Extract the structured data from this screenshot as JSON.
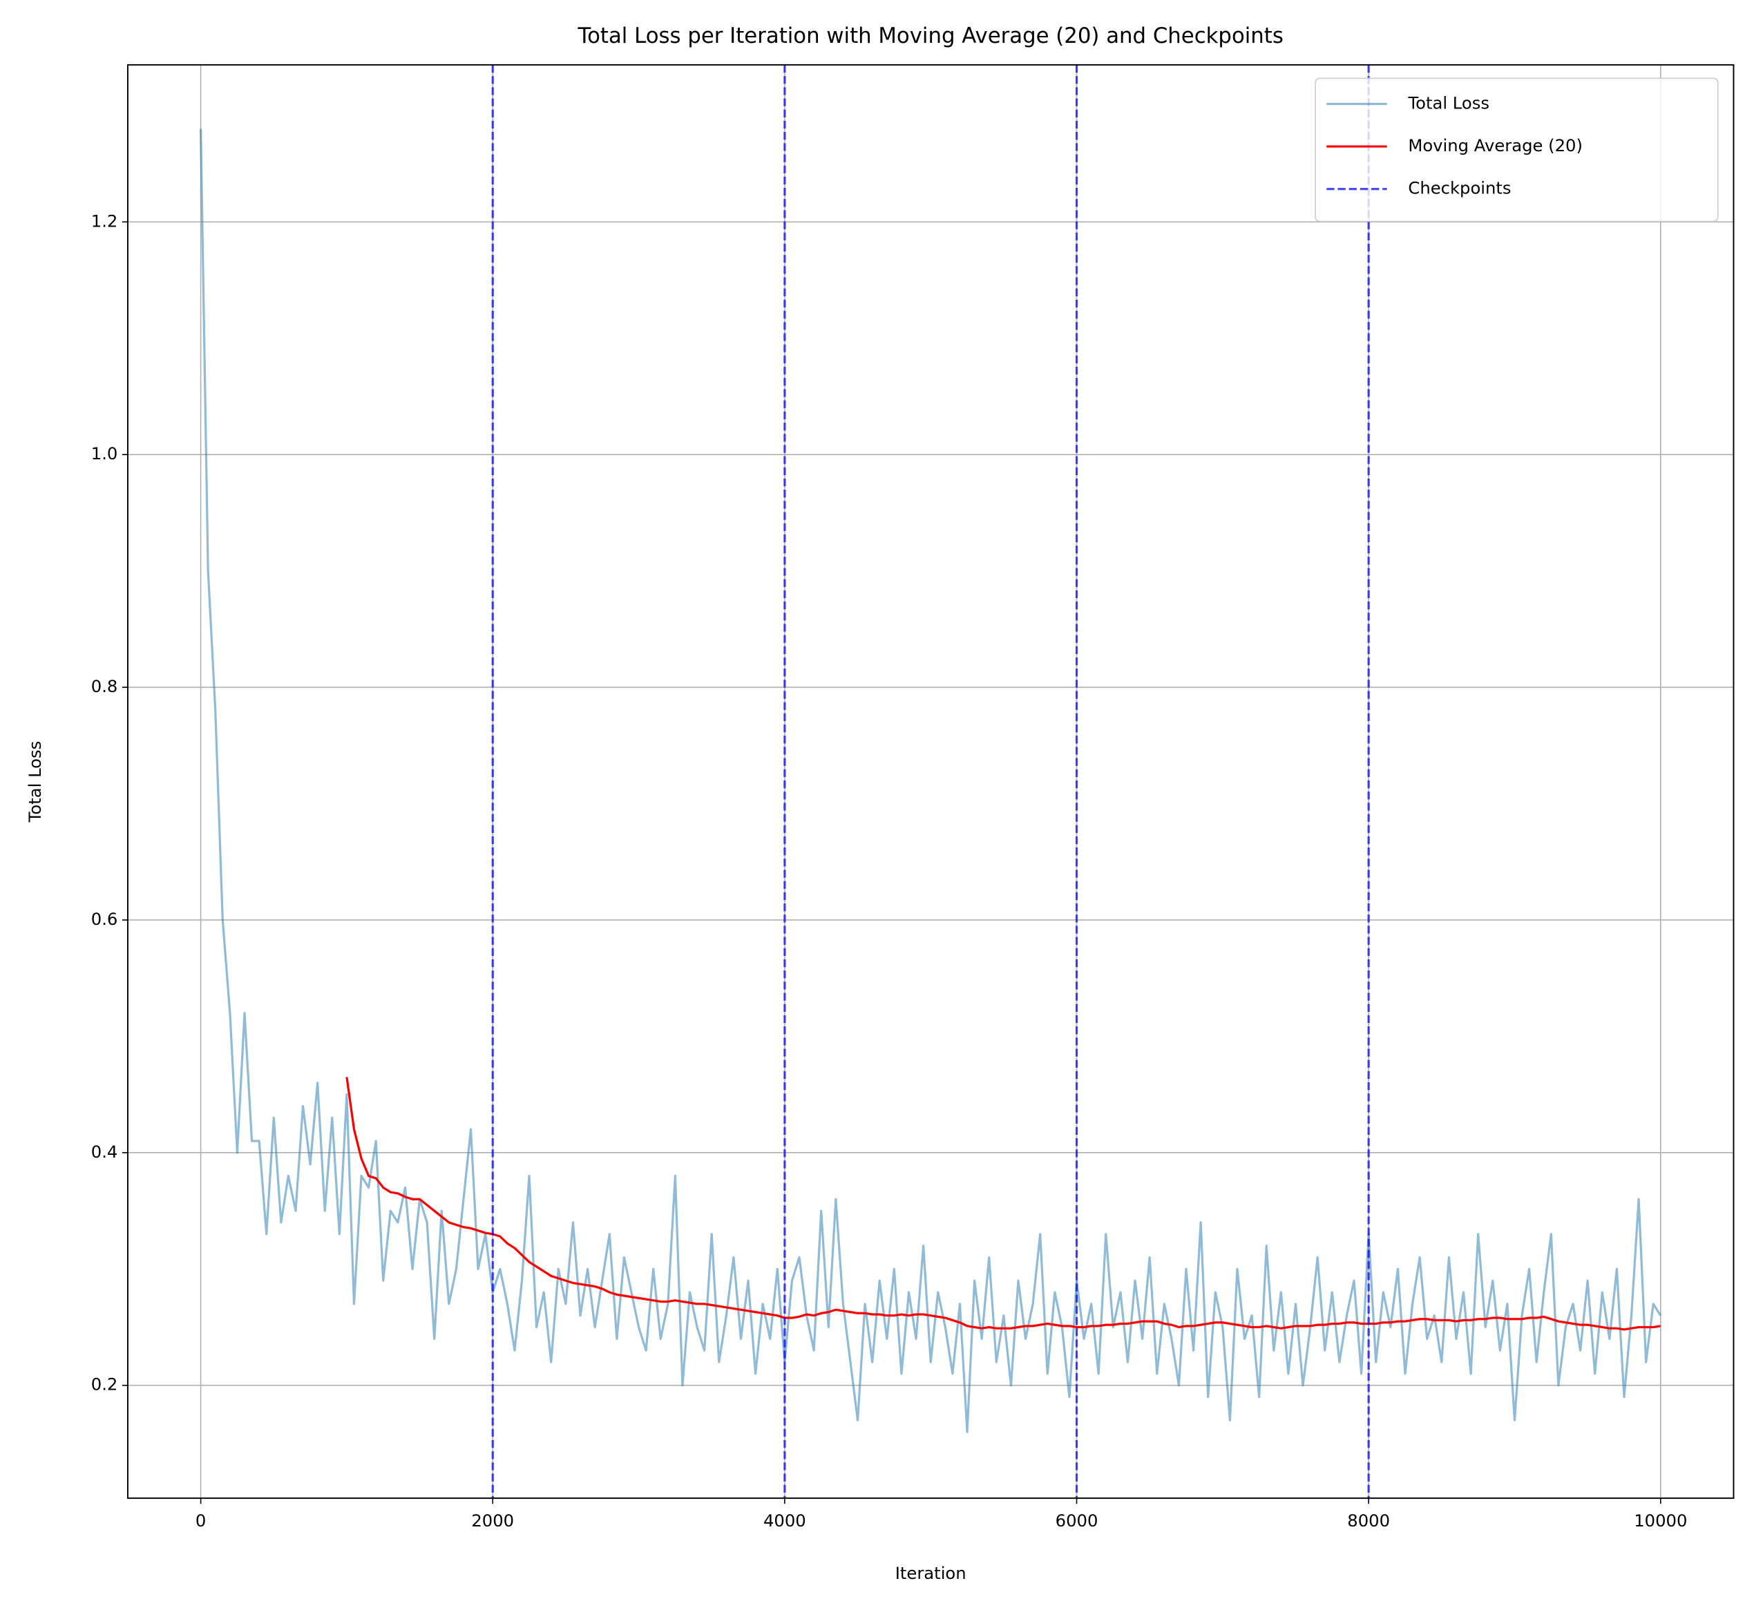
{
  "chart_data": {
    "type": "line",
    "title": "Total Loss per Iteration with Moving Average (20) and Checkpoints",
    "xlabel": "Iteration",
    "ylabel": "Total Loss",
    "x": [
      0,
      50,
      100,
      150,
      200,
      250,
      300,
      350,
      400,
      450,
      500,
      550,
      600,
      650,
      700,
      750,
      800,
      850,
      900,
      950,
      1000,
      1050,
      1100,
      1150,
      1200,
      1250,
      1300,
      1350,
      1400,
      1450,
      1500,
      1550,
      1600,
      1650,
      1700,
      1750,
      1800,
      1850,
      1900,
      1950,
      2000,
      2050,
      2100,
      2150,
      2200,
      2250,
      2300,
      2350,
      2400,
      2450,
      2500,
      2550,
      2600,
      2650,
      2700,
      2750,
      2800,
      2850,
      2900,
      2950,
      3000,
      3050,
      3100,
      3150,
      3200,
      3250,
      3300,
      3350,
      3400,
      3450,
      3500,
      3550,
      3600,
      3650,
      3700,
      3750,
      3800,
      3850,
      3900,
      3950,
      4000,
      4050,
      4100,
      4150,
      4200,
      4250,
      4300,
      4350,
      4400,
      4450,
      4500,
      4550,
      4600,
      4650,
      4700,
      4750,
      4800,
      4850,
      4900,
      4950,
      5000,
      5050,
      5100,
      5150,
      5200,
      5250,
      5300,
      5350,
      5400,
      5450,
      5500,
      5550,
      5600,
      5650,
      5700,
      5750,
      5800,
      5850,
      5900,
      5950,
      6000,
      6050,
      6100,
      6150,
      6200,
      6250,
      6300,
      6350,
      6400,
      6450,
      6500,
      6550,
      6600,
      6650,
      6700,
      6750,
      6800,
      6850,
      6900,
      6950,
      7000,
      7050,
      7100,
      7150,
      7200,
      7250,
      7300,
      7350,
      7400,
      7450,
      7500,
      7550,
      7600,
      7650,
      7700,
      7750,
      7800,
      7850,
      7900,
      7950,
      8000,
      8050,
      8100,
      8150,
      8200,
      8250,
      8300,
      8350,
      8400,
      8450,
      8500,
      8550,
      8600,
      8650,
      8700,
      8750,
      8800,
      8850,
      8900,
      8950,
      9000,
      9050,
      9100,
      9150,
      9200,
      9250,
      9300,
      9350,
      9400,
      9450,
      9500,
      9550,
      9600,
      9650,
      9700,
      9750,
      9800,
      9850,
      9900,
      9950,
      10000
    ],
    "series": [
      {
        "name": "Total Loss",
        "color": "#1f77b4",
        "opacity": 0.5,
        "values": [
          1.28,
          0.9,
          0.78,
          0.6,
          0.52,
          0.4,
          0.52,
          0.41,
          0.41,
          0.33,
          0.43,
          0.34,
          0.38,
          0.35,
          0.44,
          0.39,
          0.46,
          0.35,
          0.43,
          0.33,
          0.45,
          0.27,
          0.38,
          0.37,
          0.41,
          0.29,
          0.35,
          0.34,
          0.37,
          0.3,
          0.36,
          0.34,
          0.24,
          0.35,
          0.27,
          0.3,
          0.36,
          0.42,
          0.3,
          0.33,
          0.28,
          0.3,
          0.27,
          0.23,
          0.29,
          0.38,
          0.25,
          0.28,
          0.22,
          0.3,
          0.27,
          0.34,
          0.26,
          0.3,
          0.25,
          0.29,
          0.33,
          0.24,
          0.31,
          0.28,
          0.25,
          0.23,
          0.3,
          0.24,
          0.27,
          0.38,
          0.2,
          0.28,
          0.25,
          0.23,
          0.33,
          0.22,
          0.26,
          0.31,
          0.24,
          0.29,
          0.21,
          0.27,
          0.24,
          0.3,
          0.22,
          0.29,
          0.31,
          0.26,
          0.23,
          0.35,
          0.25,
          0.36,
          0.27,
          0.22,
          0.17,
          0.27,
          0.22,
          0.29,
          0.24,
          0.3,
          0.21,
          0.28,
          0.24,
          0.32,
          0.22,
          0.28,
          0.25,
          0.21,
          0.27,
          0.16,
          0.29,
          0.24,
          0.31,
          0.22,
          0.26,
          0.2,
          0.29,
          0.24,
          0.27,
          0.33,
          0.21,
          0.28,
          0.25,
          0.19,
          0.29,
          0.24,
          0.27,
          0.21,
          0.33,
          0.25,
          0.28,
          0.22,
          0.29,
          0.24,
          0.31,
          0.21,
          0.27,
          0.24,
          0.2,
          0.3,
          0.23,
          0.34,
          0.19,
          0.28,
          0.25,
          0.17,
          0.3,
          0.24,
          0.26,
          0.19,
          0.32,
          0.23,
          0.28,
          0.21,
          0.27,
          0.2,
          0.25,
          0.31,
          0.23,
          0.28,
          0.22,
          0.26,
          0.29,
          0.21,
          0.33,
          0.22,
          0.28,
          0.25,
          0.3,
          0.21,
          0.27,
          0.31,
          0.24,
          0.26,
          0.22,
          0.31,
          0.24,
          0.28,
          0.21,
          0.33,
          0.25,
          0.29,
          0.23,
          0.27,
          0.17,
          0.26,
          0.3,
          0.22,
          0.28,
          0.33,
          0.2,
          0.25,
          0.27,
          0.23,
          0.29,
          0.21,
          0.28,
          0.24,
          0.3,
          0.19,
          0.26,
          0.36,
          0.22,
          0.27,
          0.26
        ]
      },
      {
        "name": "Moving Average (20)",
        "color": "red",
        "opacity": 1,
        "values": [
          null,
          null,
          null,
          null,
          null,
          null,
          null,
          null,
          null,
          null,
          null,
          null,
          null,
          null,
          null,
          null,
          null,
          null,
          null,
          null,
          0.465,
          0.42,
          0.395,
          0.38,
          0.378,
          0.37,
          0.366,
          0.365,
          0.362,
          0.36,
          0.36,
          0.355,
          0.35,
          0.345,
          0.34,
          0.338,
          0.336,
          0.335,
          0.333,
          0.331,
          0.33,
          0.328,
          0.322,
          0.318,
          0.312,
          0.306,
          0.302,
          0.298,
          0.294,
          0.292,
          0.29,
          0.288,
          0.287,
          0.286,
          0.285,
          0.283,
          0.28,
          0.278,
          0.277,
          0.276,
          0.275,
          0.274,
          0.273,
          0.272,
          0.272,
          0.273,
          0.272,
          0.271,
          0.27,
          0.27,
          0.269,
          0.268,
          0.267,
          0.266,
          0.265,
          0.264,
          0.263,
          0.262,
          0.261,
          0.26,
          0.258,
          0.258,
          0.259,
          0.261,
          0.26,
          0.262,
          0.263,
          0.265,
          0.264,
          0.263,
          0.262,
          0.262,
          0.261,
          0.261,
          0.26,
          0.26,
          0.261,
          0.26,
          0.261,
          0.261,
          0.26,
          0.259,
          0.258,
          0.256,
          0.254,
          0.251,
          0.25,
          0.249,
          0.25,
          0.249,
          0.249,
          0.249,
          0.25,
          0.251,
          0.251,
          0.252,
          0.253,
          0.252,
          0.251,
          0.251,
          0.25,
          0.25,
          0.251,
          0.251,
          0.252,
          0.252,
          0.253,
          0.253,
          0.254,
          0.255,
          0.255,
          0.255,
          0.253,
          0.252,
          0.25,
          0.251,
          0.251,
          0.252,
          0.253,
          0.254,
          0.254,
          0.253,
          0.252,
          0.251,
          0.25,
          0.25,
          0.251,
          0.25,
          0.249,
          0.25,
          0.251,
          0.251,
          0.251,
          0.252,
          0.252,
          0.253,
          0.253,
          0.254,
          0.254,
          0.253,
          0.253,
          0.253,
          0.254,
          0.254,
          0.255,
          0.255,
          0.256,
          0.257,
          0.257,
          0.256,
          0.256,
          0.256,
          0.255,
          0.256,
          0.256,
          0.257,
          0.257,
          0.258,
          0.258,
          0.257,
          0.257,
          0.257,
          0.258,
          0.258,
          0.259,
          0.257,
          0.255,
          0.254,
          0.253,
          0.252,
          0.252,
          0.251,
          0.25,
          0.249,
          0.249,
          0.248,
          0.249,
          0.25,
          0.25,
          0.25,
          0.251
        ]
      }
    ],
    "checkpoints": {
      "name": "Checkpoints",
      "color": "blue",
      "opacity": 0.7,
      "linestyle": "dashed",
      "x": [
        2000,
        4000,
        6000,
        8000
      ]
    },
    "xlim": [
      -500,
      10500
    ],
    "xticks": [
      0,
      2000,
      4000,
      6000,
      8000,
      10000
    ],
    "ylim": [
      0.103,
      1.335
    ],
    "yticks": [
      0.2,
      0.4,
      0.6,
      0.8,
      {
        "value": 1,
        "label": "1.0"
      },
      1.2
    ],
    "grid": true,
    "legend": "upper right"
  }
}
